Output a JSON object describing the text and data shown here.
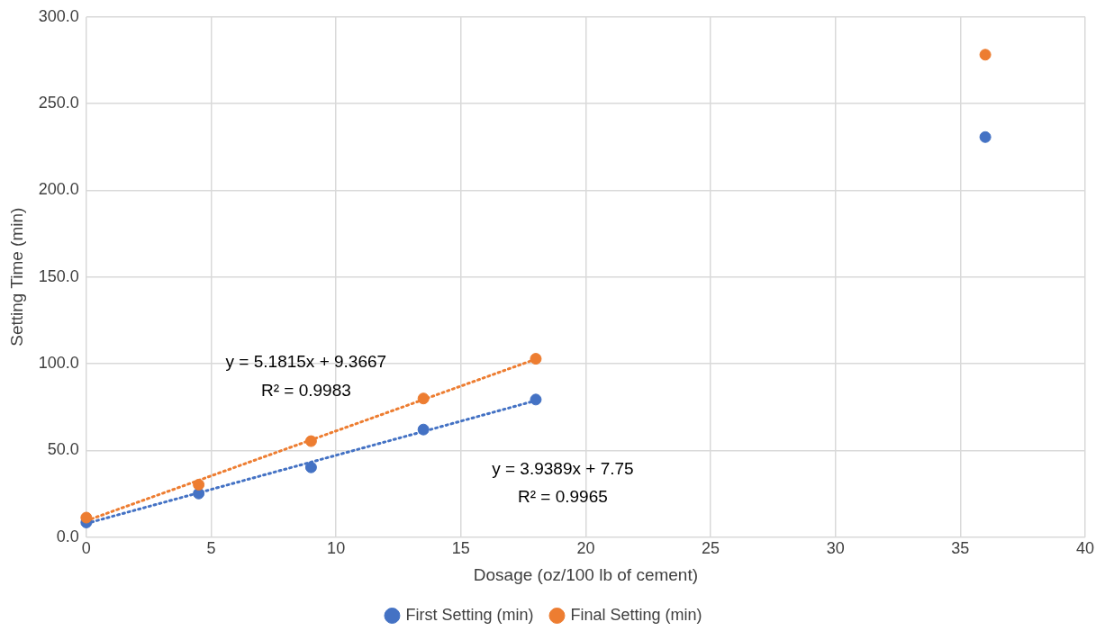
{
  "chart_data": {
    "type": "scatter",
    "xlabel": "Dosage (oz/100 lb of cement)",
    "ylabel": "Setting Time (min)",
    "x": [
      0,
      4.5,
      9,
      13.5,
      18,
      36
    ],
    "series": [
      {
        "name": "First Setting (min)",
        "color": "#4472c4",
        "values": [
          8.4,
          25.1,
          40.2,
          62,
          79.3,
          230.7
        ]
      },
      {
        "name": "Final Setting (min)",
        "color": "#ed7d31",
        "values": [
          11.2,
          30.2,
          55.3,
          79.9,
          102.8,
          278.2
        ]
      },
      {
        "type": "line",
        "color": "#4472c4",
        "values": [
          7.8,
          25.5,
          43.2,
          60.9,
          78.7,
          null
        ],
        "line_style": "dotted",
        "marker": "none"
      },
      {
        "type": "line",
        "color": "#ed7d31",
        "values": [
          9.4,
          32.7,
          56.0,
          79.3,
          102.6,
          null
        ],
        "line_style": "dotted",
        "marker": "none"
      }
    ],
    "xlim": [
      0,
      40
    ],
    "xticks": [
      0,
      5,
      10,
      15,
      20,
      25,
      30,
      35,
      40
    ],
    "ylim": [
      0,
      300
    ],
    "yticks": [
      {
        "value": 0,
        "label": "0.0"
      },
      {
        "value": 50,
        "label": "50.0"
      },
      {
        "value": 100,
        "label": "100.0"
      },
      {
        "value": 150,
        "label": "150.0"
      },
      {
        "value": 200,
        "label": "200.0"
      },
      {
        "value": 250,
        "label": "250.0"
      },
      {
        "value": 300,
        "label": "300.0"
      }
    ],
    "annotations": [
      "y = 5.1815x + 9.3667",
      "R² = 0.9983",
      "y = 3.9389x + 7.75",
      "R² = 0.9965"
    ],
    "grid": true,
    "legend": "bottom",
    "marker": "circle"
  }
}
